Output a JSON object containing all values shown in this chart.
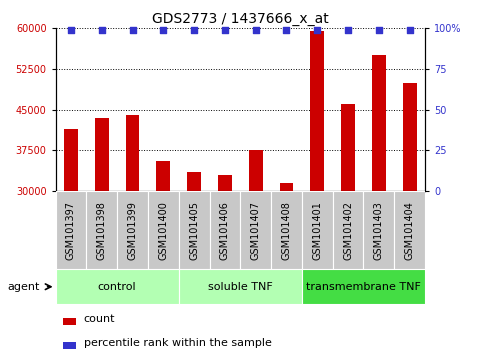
{
  "title": "GDS2773 / 1437666_x_at",
  "samples": [
    "GSM101397",
    "GSM101398",
    "GSM101399",
    "GSM101400",
    "GSM101405",
    "GSM101406",
    "GSM101407",
    "GSM101408",
    "GSM101401",
    "GSM101402",
    "GSM101403",
    "GSM101404"
  ],
  "counts": [
    41500,
    43500,
    44000,
    35500,
    33500,
    33000,
    37500,
    31500,
    59500,
    46000,
    55000,
    50000
  ],
  "percentile_ranks": [
    99,
    99,
    99,
    99,
    99,
    99,
    99,
    99,
    99,
    99,
    99,
    99
  ],
  "groups": [
    {
      "label": "control",
      "start": 0,
      "end": 4
    },
    {
      "label": "soluble TNF",
      "start": 4,
      "end": 8
    },
    {
      "label": "transmembrane TNF",
      "start": 8,
      "end": 12
    }
  ],
  "group_colors": [
    "#b3ffb3",
    "#b3ffb3",
    "#44dd44"
  ],
  "bar_color": "#cc0000",
  "dot_color": "#3333cc",
  "ylim_left": [
    30000,
    60000
  ],
  "ylim_right": [
    0,
    100
  ],
  "yticks_left": [
    30000,
    37500,
    45000,
    52500,
    60000
  ],
  "yticks_right": [
    0,
    25,
    50,
    75,
    100
  ],
  "yticklabels_right": [
    "0",
    "25",
    "50",
    "75",
    "100%"
  ],
  "agent_label": "agent",
  "legend_count_label": "count",
  "legend_pct_label": "percentile rank within the sample",
  "bg_xticklabel": "#c8c8c8",
  "title_fontsize": 10,
  "tick_fontsize": 7,
  "label_fontsize": 7,
  "group_fontsize": 8
}
